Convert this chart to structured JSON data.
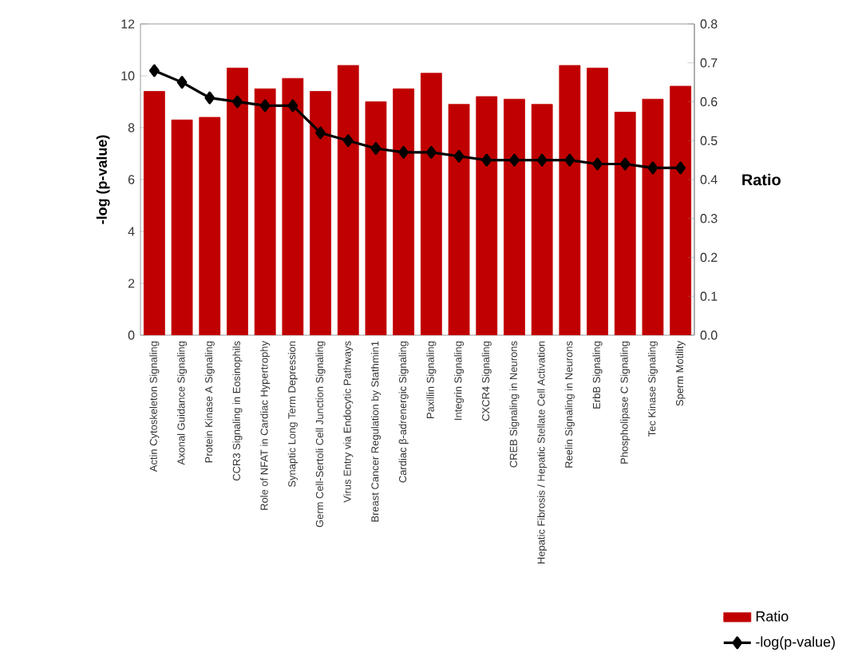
{
  "chart_data": {
    "type": "bar",
    "categories": [
      "Actin Cytoskeleton Signaling",
      "Axonal Guidance Signaling",
      "Protein Kinase A Signaling",
      "CCR3 Signaling in Eosinophils",
      "Role of NFAT in Cardiac Hypertrophy",
      "Synaptic Long Term Depression",
      "Germ Cell-Sertoli Cell Junction Signaling",
      "Virus Entry via Endocytic Pathways",
      "Breast Cancer Regulation by Stathmin1",
      "Cardiac β-adrenergic Signaling",
      "Paxillin Signaling",
      "Integrin Signaling",
      "CXCR4 Signaling",
      "CREB Signaling in Neurons",
      "Hepatic Fibrosis / Hepatic Stellate Cell Activation",
      "Reelin Signaling in Neurons",
      "ErbB Signaling",
      "Phospholipase C Signaling",
      "Tec Kinase Signaling",
      "Sperm Motility"
    ],
    "series": [
      {
        "name": "Ratio",
        "color": "#c00000",
        "values": [
          9.4,
          8.3,
          8.4,
          10.3,
          9.5,
          9.9,
          9.4,
          10.4,
          9.0,
          9.5,
          10.1,
          8.9,
          9.2,
          9.1,
          8.9,
          10.4,
          10.3,
          8.6,
          9.1,
          9.6
        ]
      },
      {
        "name": "-log(p-value)",
        "type": "line",
        "axis": "y2",
        "color": "#000000",
        "marker": "diamond",
        "values": [
          0.68,
          0.65,
          0.61,
          0.6,
          0.59,
          0.59,
          0.52,
          0.5,
          0.48,
          0.47,
          0.47,
          0.46,
          0.45,
          0.45,
          0.45,
          0.45,
          0.44,
          0.44,
          0.43,
          0.43
        ]
      }
    ],
    "ylabel": "-log (p-value)",
    "y2label": "Ratio",
    "ylim": [
      0,
      12
    ],
    "yticks": [
      0,
      2,
      4,
      6,
      8,
      10,
      12
    ],
    "y2lim": [
      0,
      0.8
    ],
    "y2ticks": [
      {
        "value": 0,
        "label": "0.0"
      },
      0.1,
      0.2,
      0.3,
      0.4,
      0.5,
      0.6,
      0.7,
      0.8
    ],
    "legend": "bottom right",
    "grid": false
  }
}
